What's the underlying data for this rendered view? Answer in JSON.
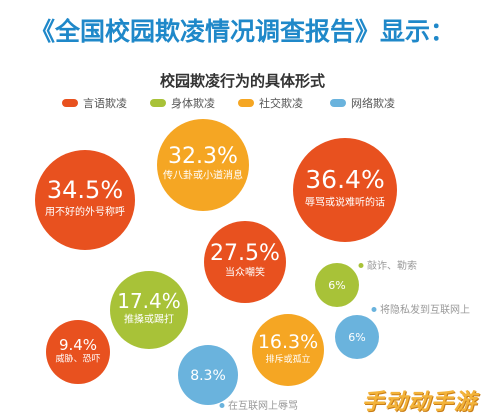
{
  "header": {
    "headline": "《全国校园欺凌情况调查报告》显示："
  },
  "chart_data": {
    "type": "bubble",
    "title": "校园欺凌行为的具体形式",
    "legend_position": "top",
    "categories": [
      {
        "name": "言语欺凌",
        "color": "#e8511f"
      },
      {
        "name": "身体欺凌",
        "color": "#a8c238"
      },
      {
        "name": "社交欺凌",
        "color": "#f5a623"
      },
      {
        "name": "网络欺凌",
        "color": "#6ab3dd"
      }
    ],
    "items": [
      {
        "value": "34.5%",
        "label": "用不好的外号称呼",
        "category": "言语欺凌"
      },
      {
        "value": "32.3%",
        "label": "传八卦或小道消息",
        "category": "社交欺凌"
      },
      {
        "value": "36.4%",
        "label": "辱骂或说难听的话",
        "category": "言语欺凌"
      },
      {
        "value": "27.5%",
        "label": "当众嘲笑",
        "category": "言语欺凌"
      },
      {
        "value": "6%",
        "label": "敲诈、勒索",
        "category": "身体欺凌"
      },
      {
        "value": "17.4%",
        "label": "推搡或踢打",
        "category": "身体欺凌"
      },
      {
        "value": "9.4%",
        "label": "威胁、恐吓",
        "category": "言语欺凌"
      },
      {
        "value": "16.3%",
        "label": "排斥或孤立",
        "category": "社交欺凌"
      },
      {
        "value": "6%",
        "label": "将隐私发到互联网上",
        "category": "网络欺凌"
      },
      {
        "value": "8.3%",
        "label": "在互联网上辱骂",
        "category": "网络欺凌"
      }
    ]
  },
  "watermark": "手动动手游"
}
